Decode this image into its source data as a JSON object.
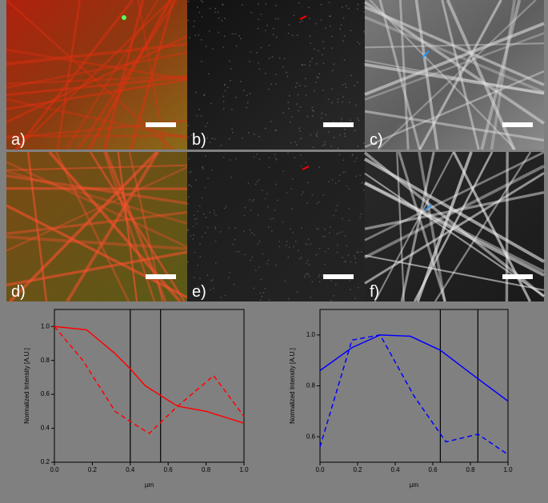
{
  "panels": [
    {
      "label": "a)"
    },
    {
      "label": "b)"
    },
    {
      "label": "c)"
    },
    {
      "label": "d)"
    },
    {
      "label": "e)"
    },
    {
      "label": "f)"
    }
  ],
  "chart_data": [
    {
      "type": "line",
      "x_label": "µm",
      "y_label": "Normalized Intensity [A.U.]",
      "xlim": [
        0,
        1
      ],
      "ylim": [
        0.2,
        1.1
      ],
      "xticks": [
        {
          "value": 0,
          "label": "0.0"
        },
        0.2,
        0.4,
        0.6,
        0.8,
        {
          "value": 1,
          "label": "1.0"
        }
      ],
      "yticks": [
        0.2,
        0.4,
        0.6,
        0.8,
        {
          "value": 1,
          "label": "1.0"
        }
      ],
      "vlines": [
        0.4,
        0.56
      ],
      "series": [
        {
          "color": "#ff0000",
          "dash": false,
          "x": [
            0,
            0.17,
            0.32,
            0.4,
            0.48,
            0.65,
            0.8,
            1.0
          ],
          "values": [
            1.0,
            0.98,
            0.84,
            0.75,
            0.65,
            0.53,
            0.5,
            0.43
          ]
        },
        {
          "color": "#ff0000",
          "dash": true,
          "x": [
            0,
            0.15,
            0.32,
            0.4,
            0.5,
            0.65,
            0.84,
            1.0
          ],
          "values": [
            1.0,
            0.8,
            0.5,
            0.44,
            0.37,
            0.53,
            0.71,
            0.47
          ]
        }
      ]
    },
    {
      "type": "line",
      "x_label": "µm",
      "y_label": "Normalized Intensity [A.U.]",
      "xlim": [
        0,
        1
      ],
      "ylim": [
        0.5,
        1.1
      ],
      "xticks": [
        {
          "value": 0,
          "label": "0.0"
        },
        0.2,
        0.4,
        0.6,
        0.8,
        {
          "value": 1,
          "label": "1.0"
        }
      ],
      "yticks": [
        0.6,
        0.8,
        {
          "value": 1,
          "label": "1.0"
        }
      ],
      "vlines": [
        0.64,
        0.84
      ],
      "series": [
        {
          "color": "#0000ff",
          "dash": false,
          "x": [
            0,
            0.17,
            0.32,
            0.48,
            0.64,
            0.8,
            1.0
          ],
          "values": [
            0.86,
            0.95,
            1.0,
            0.995,
            0.94,
            0.85,
            0.74
          ]
        },
        {
          "color": "#0000ff",
          "dash": true,
          "x": [
            0,
            0.17,
            0.32,
            0.5,
            0.67,
            0.84,
            1.0
          ],
          "values": [
            0.56,
            0.98,
            1.0,
            0.76,
            0.58,
            0.61,
            0.53
          ]
        }
      ]
    }
  ]
}
